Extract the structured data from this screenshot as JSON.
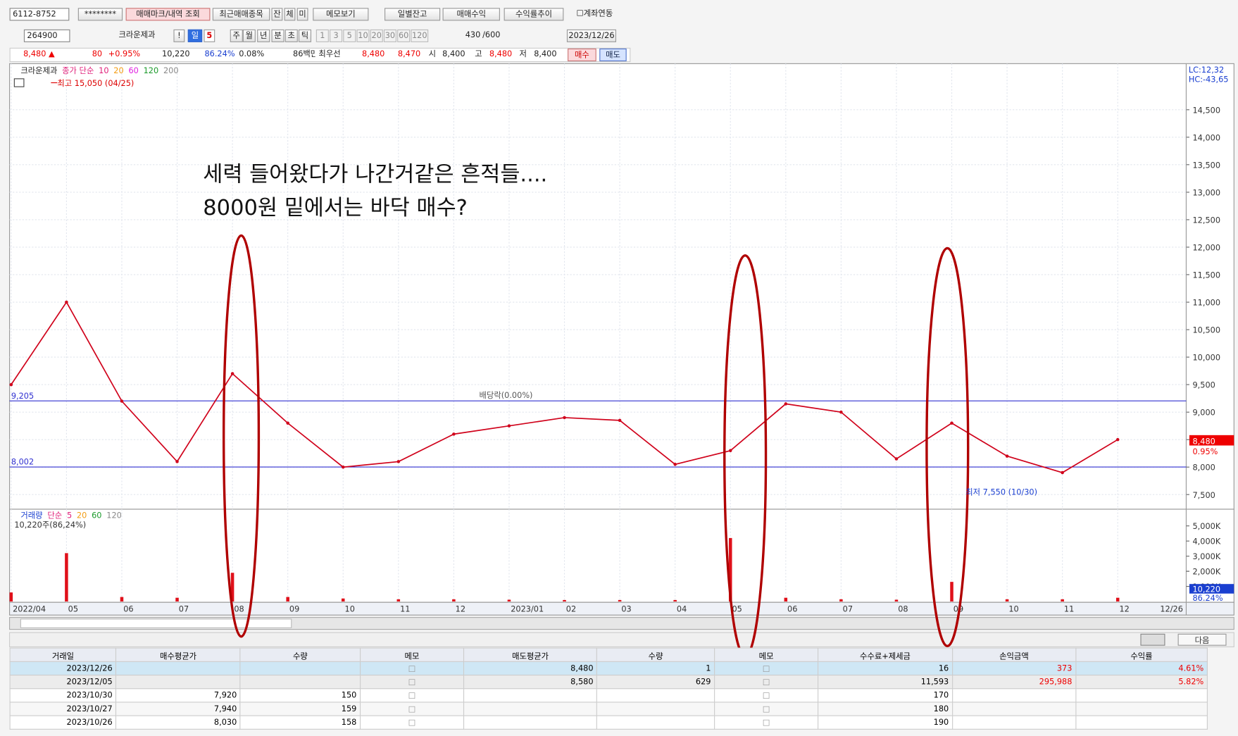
{
  "toolbar": {
    "row1": [
      "6112-8752",
      "********",
      "매매마크/내역 조회",
      "최근매매종목",
      "잔",
      "체",
      "미",
      "메모보기",
      "일별잔고",
      "매매수익",
      "수익률추이",
      "계좌연동"
    ],
    "row2": [
      "264900",
      "크라운제과",
      "!",
      "일",
      "5",
      "주",
      "월",
      "년",
      "분",
      "초",
      "틱",
      "1",
      "3",
      "5",
      "10",
      "20",
      "30",
      "60",
      "120",
      "430",
      "/600",
      "2023/12/26"
    ],
    "row3": [
      "8,480 ▲",
      "80",
      "+0.95%",
      "10,220",
      "86.24%",
      "0.08%",
      "86백만",
      "최우선",
      "8,480",
      "8,470",
      "시",
      "8,400",
      "고",
      "8,480",
      "저",
      "8,400",
      "매수",
      "매도"
    ]
  },
  "chart_data": [
    {
      "type": "line",
      "legend": [
        {
          "text": "크라운제과",
          "color": "#222222"
        },
        {
          "text": "종가 단순",
          "color": "#e0207a"
        },
        {
          "text": "10",
          "color": "#e0207a"
        },
        {
          "text": "20",
          "color": "#f39c12"
        },
        {
          "text": "60",
          "color": "#e020e0"
        },
        {
          "text": "120",
          "color": "#1a9a2a"
        },
        {
          "text": "200",
          "color": "#888888"
        }
      ],
      "categories": [
        "2022/04",
        "05",
        "06",
        "07",
        "08",
        "09",
        "10",
        "11",
        "12",
        "2023/01",
        "02",
        "03",
        "04",
        "05",
        "06",
        "07",
        "08",
        "09",
        "10",
        "11",
        "12"
      ],
      "end_label": "12/26",
      "series": [
        {
          "name": "크라운제과",
          "color": "#d0021b",
          "values": [
            9500,
            11000,
            9200,
            8100,
            9700,
            8800,
            8000,
            8100,
            8600,
            8750,
            8900,
            8850,
            8050,
            8300,
            9150,
            9000,
            8150,
            8800,
            8200,
            7900,
            8500
          ]
        }
      ],
      "ylim": [
        7263,
        15309
      ],
      "yticks": [
        {
          "value": 7500,
          "label": "7,500"
        },
        {
          "value": 8000,
          "label": "8,000"
        },
        {
          "value": 8500,
          "label": "8,500"
        },
        {
          "value": 9000,
          "label": "9,000"
        },
        {
          "value": 9500,
          "label": "9,500"
        },
        {
          "value": 10000,
          "label": "10,000"
        },
        {
          "value": 10500,
          "label": "10,500"
        },
        {
          "value": 11000,
          "label": "11,000"
        },
        {
          "value": 11500,
          "label": "11,500"
        },
        {
          "value": 12000,
          "label": "12,000"
        },
        {
          "value": 12500,
          "label": "12,500"
        },
        {
          "value": 13000,
          "label": "13,000"
        },
        {
          "value": 13500,
          "label": "13,500"
        },
        {
          "value": 14000,
          "label": "14,000"
        },
        {
          "value": 14500,
          "label": "14,500"
        }
      ],
      "price_lines": [
        {
          "value": 9205,
          "label": "9,205"
        },
        {
          "value": 8002,
          "label": "8,002"
        }
      ],
      "last_price": {
        "value": 8480,
        "label": "8,480",
        "change": "0.95%"
      },
      "annotations": {
        "high": "최고 15,050 (04/25)",
        "low": "최저 7,550 (10/30)",
        "dividend": "배당락(0.00%)",
        "lc": "LC:12,32",
        "hc": "HC:-43,65"
      },
      "comment": [
        "세력 들어왔다가 나간거같은 흔적들....",
        "8000원 밑에서는 바닥 매수?"
      ]
    },
    {
      "type": "bar",
      "legend": [
        {
          "text": "거래량",
          "color": "#1a3fd0"
        },
        {
          "text": "단순",
          "color": "#e0207a"
        },
        {
          "text": "5",
          "color": "#e0207a"
        },
        {
          "text": "20",
          "color": "#f39c12"
        },
        {
          "text": "60",
          "color": "#1a9a2a"
        },
        {
          "text": "120",
          "color": "#888888"
        }
      ],
      "summary": "10,220주(86,24%)",
      "color": "#e0101a",
      "values": [
        600,
        3200,
        300,
        250,
        1900,
        300,
        200,
        150,
        150,
        120,
        100,
        100,
        100,
        4200,
        250,
        150,
        120,
        1300,
        150,
        150,
        250
      ],
      "ylim": [
        0,
        6105
      ],
      "yticks": [
        {
          "value": 1000,
          "label": "1,000K"
        },
        {
          "value": 2000,
          "label": "2,000K"
        },
        {
          "value": 3000,
          "label": "3,000K"
        },
        {
          "value": 4000,
          "label": "4,000K"
        },
        {
          "value": 5000,
          "label": "5,000K"
        }
      ],
      "last_volume": {
        "value": 10.22,
        "label": "10,220",
        "pct": "86.24%"
      }
    }
  ],
  "bottom_button": "다음",
  "table": {
    "columns": [
      "거래일",
      "매수평균가",
      "수량",
      "메모",
      "매도평균가",
      "수량",
      "메모",
      "수수료+제세금",
      "손익금액",
      "수익률"
    ],
    "rows": [
      [
        "2023/12/26",
        null,
        null,
        null,
        "8,480",
        "1",
        null,
        "16",
        "373",
        "4.61%"
      ],
      [
        "2023/12/05",
        null,
        null,
        null,
        "8,580",
        "629",
        null,
        "11,593",
        "295,988",
        "5.82%"
      ],
      [
        "2023/10/30",
        "7,920",
        "150",
        null,
        null,
        null,
        null,
        "170",
        null,
        null
      ],
      [
        "2023/10/27",
        "7,940",
        "159",
        null,
        null,
        null,
        null,
        "180",
        null,
        null
      ],
      [
        "2023/10/26",
        "8,030",
        "158",
        null,
        null,
        null,
        null,
        "190",
        null,
        null
      ]
    ]
  }
}
